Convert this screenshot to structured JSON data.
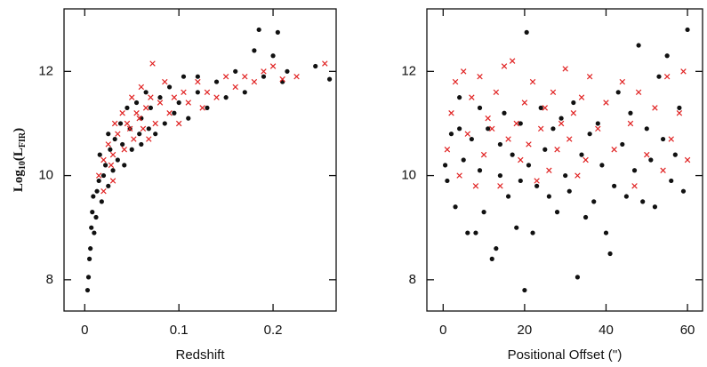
{
  "chart_data": [
    {
      "type": "scatter",
      "x_label": "Redshift",
      "y_label_parts": [
        "Log",
        "10",
        "(L",
        "FIR",
        ")"
      ],
      "xlim": [
        -0.022,
        0.267
      ],
      "ylim": [
        7.4,
        13.2
      ],
      "xticks": [
        0,
        0.1,
        0.2
      ],
      "yticks": [
        8,
        10,
        12
      ],
      "series": [
        {
          "color": "#111111",
          "marker": "circle",
          "x": [
            0.003,
            0.004,
            0.005,
            0.006,
            0.007,
            0.008,
            0.009,
            0.01,
            0.012,
            0.013,
            0.015,
            0.016,
            0.018,
            0.02,
            0.022,
            0.025,
            0.027,
            0.03,
            0.032,
            0.035,
            0.038,
            0.04,
            0.042,
            0.045,
            0.048,
            0.05,
            0.055,
            0.058,
            0.06,
            0.065,
            0.068,
            0.07,
            0.075,
            0.08,
            0.085,
            0.09,
            0.095,
            0.1,
            0.105,
            0.11,
            0.12,
            0.13,
            0.14,
            0.15,
            0.16,
            0.17,
            0.18,
            0.185,
            0.19,
            0.2,
            0.205,
            0.21,
            0.215,
            0.245,
            0.26,
            0.025,
            0.06,
            0.12
          ],
          "values": [
            7.8,
            8.05,
            8.4,
            8.6,
            9.0,
            9.3,
            9.6,
            8.9,
            9.2,
            9.7,
            9.9,
            10.4,
            9.5,
            10.0,
            10.2,
            9.8,
            10.5,
            10.1,
            10.7,
            10.3,
            11.0,
            10.6,
            10.2,
            11.3,
            10.9,
            10.5,
            11.4,
            10.8,
            11.1,
            11.6,
            10.9,
            11.3,
            10.8,
            11.5,
            11.0,
            11.7,
            11.2,
            11.4,
            11.9,
            11.1,
            11.6,
            11.3,
            11.8,
            11.5,
            12.0,
            11.6,
            12.4,
            12.8,
            11.9,
            12.3,
            12.75,
            11.8,
            12.0,
            12.1,
            11.85,
            10.8,
            10.6,
            11.9
          ]
        },
        {
          "color": "#e02020",
          "marker": "x",
          "x": [
            0.015,
            0.02,
            0.025,
            0.03,
            0.032,
            0.035,
            0.04,
            0.042,
            0.045,
            0.05,
            0.052,
            0.055,
            0.06,
            0.062,
            0.065,
            0.07,
            0.072,
            0.075,
            0.08,
            0.085,
            0.09,
            0.095,
            0.1,
            0.105,
            0.11,
            0.12,
            0.125,
            0.13,
            0.14,
            0.15,
            0.16,
            0.17,
            0.18,
            0.19,
            0.2,
            0.21,
            0.225,
            0.255,
            0.028,
            0.048,
            0.058,
            0.068,
            0.03,
            0.02
          ],
          "values": [
            10.0,
            10.3,
            10.6,
            10.4,
            11.0,
            10.8,
            11.2,
            10.5,
            11.0,
            11.5,
            10.7,
            11.2,
            11.7,
            10.9,
            11.3,
            11.5,
            12.15,
            11.0,
            11.4,
            11.8,
            11.2,
            11.5,
            11.0,
            11.6,
            11.4,
            11.8,
            11.3,
            11.6,
            11.5,
            11.9,
            11.7,
            11.9,
            11.8,
            12.0,
            12.1,
            11.85,
            11.9,
            12.15,
            10.2,
            10.9,
            11.1,
            10.7,
            9.9,
            9.7
          ]
        }
      ]
    },
    {
      "type": "scatter",
      "x_label": "Positional Offset ('')",
      "xlim": [
        -4,
        63.7
      ],
      "ylim": [
        7.4,
        13.2
      ],
      "xticks": [
        0,
        20,
        40,
        60
      ],
      "yticks": [
        8,
        10,
        12
      ],
      "series": [
        {
          "color": "#111111",
          "marker": "circle",
          "x": [
            0.5,
            1,
            2,
            3,
            4,
            5,
            6,
            7,
            8,
            9,
            10,
            11,
            12,
            13,
            14,
            15,
            16,
            17,
            18,
            19,
            20,
            20.5,
            21,
            22,
            23,
            24,
            25,
            26,
            27,
            28,
            29,
            30,
            31,
            32,
            33,
            34,
            35,
            36,
            37,
            38,
            39,
            40,
            41,
            42,
            43,
            44,
            45,
            46,
            47,
            48,
            49,
            50,
            51,
            52,
            53,
            54,
            55,
            56,
            57,
            58,
            59,
            60,
            4,
            9,
            14,
            19
          ],
          "values": [
            10.2,
            9.9,
            10.8,
            9.4,
            11.5,
            10.3,
            8.9,
            10.7,
            8.9,
            10.1,
            9.3,
            10.9,
            8.4,
            8.6,
            10.0,
            11.2,
            9.6,
            10.4,
            9.0,
            11.0,
            7.8,
            12.75,
            10.2,
            8.9,
            9.8,
            11.3,
            10.5,
            9.6,
            10.9,
            9.3,
            11.1,
            10.0,
            9.7,
            11.4,
            8.05,
            10.4,
            9.2,
            10.8,
            9.5,
            11.0,
            10.2,
            8.9,
            8.5,
            9.8,
            11.6,
            10.6,
            9.6,
            11.2,
            10.1,
            12.5,
            9.5,
            10.9,
            10.3,
            9.4,
            11.9,
            10.7,
            12.3,
            9.9,
            10.4,
            11.3,
            9.7,
            12.8,
            10.9,
            11.3,
            10.6,
            9.9
          ]
        },
        {
          "color": "#e02020",
          "marker": "x",
          "x": [
            1,
            2,
            3,
            4,
            5,
            6,
            7,
            8,
            9,
            10,
            11,
            12,
            13,
            14,
            15,
            16,
            17,
            18,
            19,
            20,
            21,
            22,
            23,
            24,
            25,
            26,
            27,
            28,
            29,
            30,
            31,
            32,
            33,
            34,
            35,
            36,
            38,
            40,
            42,
            44,
            46,
            47,
            48,
            50,
            52,
            54,
            55,
            56,
            58,
            59,
            60
          ],
          "values": [
            10.5,
            11.2,
            11.8,
            10.0,
            12.0,
            10.8,
            11.5,
            9.8,
            11.9,
            10.4,
            11.1,
            10.9,
            11.6,
            9.8,
            12.1,
            10.7,
            12.2,
            11.0,
            10.3,
            11.4,
            10.6,
            11.8,
            9.9,
            10.9,
            11.3,
            10.1,
            11.6,
            10.5,
            11.0,
            12.05,
            10.7,
            11.2,
            10.0,
            11.5,
            10.3,
            11.9,
            10.9,
            11.4,
            10.5,
            11.8,
            11.0,
            9.8,
            11.6,
            10.4,
            11.3,
            10.1,
            11.9,
            10.7,
            11.2,
            12.0,
            10.3
          ]
        }
      ]
    }
  ]
}
